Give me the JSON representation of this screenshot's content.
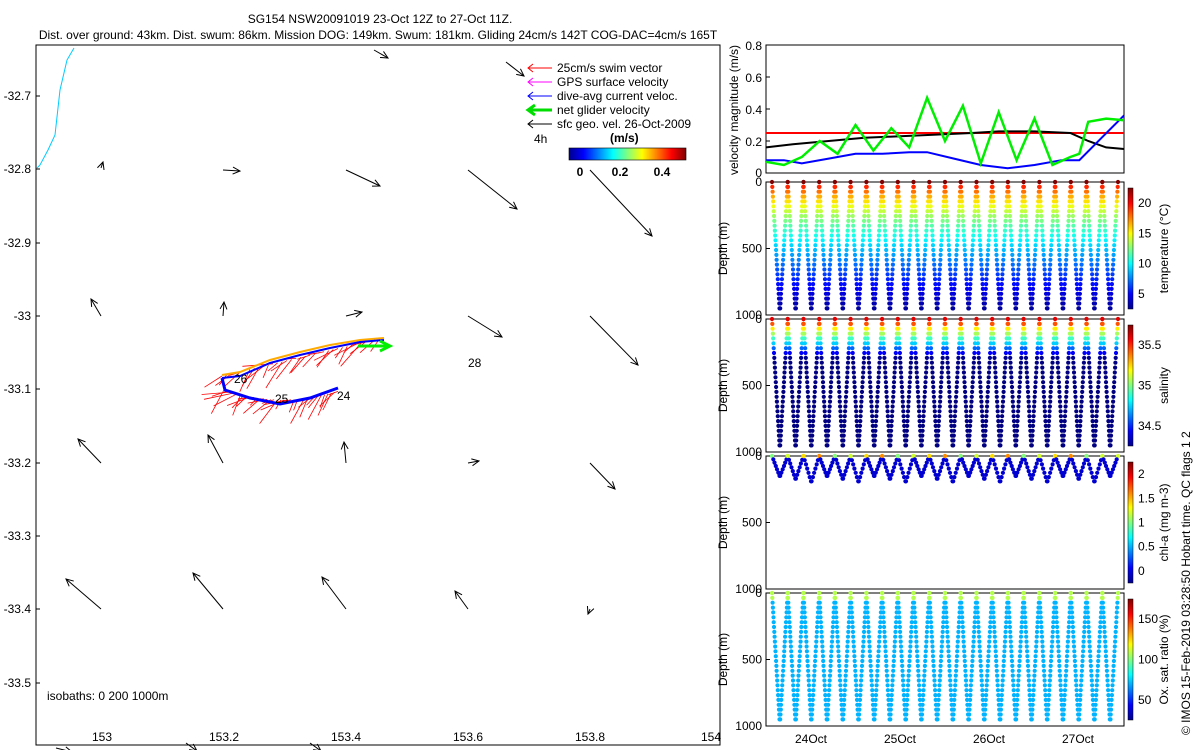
{
  "header": {
    "line1": "SG154 NSW20091019 23-Oct 12Z to 27-Oct 11Z.",
    "line2": "Dist. over ground: 43km. Dist. swum: 86km. Mission DOG: 149km. Swum: 181km. Gliding 24cm/s 142T COG-DAC=4cm/s 165T"
  },
  "map": {
    "legend": {
      "items": [
        {
          "label": "25cm/s swim vector",
          "color": "#ff0000"
        },
        {
          "label": "GPS surface velocity",
          "color": "#ff00ff"
        },
        {
          "label": "dive-avg current veloc.",
          "color": "#0000ff"
        },
        {
          "label": "net glider velocity",
          "color": "#00dd00"
        },
        {
          "label": "sfc geo. vel. 26-Oct-2009",
          "color": "#000000"
        }
      ],
      "duration_label": "4h",
      "colorbar_title": "(m/s)",
      "colorbar_ticks": [
        "0",
        "0.2",
        "0.4"
      ]
    },
    "isobaths_label": "isobaths: 0   200   1000m",
    "track_labels": [
      "26",
      "25",
      "24",
      "28"
    ],
    "xticks": [
      "153",
      "153.2",
      "153.4",
      "153.6",
      "153.8",
      "154"
    ],
    "yticks": [
      "-32.7",
      "-32.8",
      "-32.9",
      "-33",
      "-33.1",
      "-33.2",
      "-33.3",
      "-33.4",
      "-33.5"
    ]
  },
  "chart_data": [
    {
      "type": "line",
      "title": "",
      "ylabel": "velocity magnitude (m/s)",
      "ylim": [
        0,
        0.8
      ],
      "yticks": [
        "0",
        "0.2",
        "0.4",
        "0.6",
        "0.8"
      ],
      "x_days": [
        23.5,
        27.5
      ],
      "series": [
        {
          "color": "#ff0000",
          "x": [
            23.5,
            27.5
          ],
          "y": [
            0.25,
            0.25
          ]
        },
        {
          "color": "#000000",
          "x": [
            23.5,
            23.8,
            24.2,
            24.6,
            25.0,
            25.4,
            25.8,
            26.1,
            26.5,
            26.9,
            27.1,
            27.3,
            27.5
          ],
          "y": [
            0.16,
            0.18,
            0.2,
            0.22,
            0.23,
            0.24,
            0.25,
            0.26,
            0.26,
            0.25,
            0.2,
            0.16,
            0.15
          ]
        },
        {
          "color": "#0000ff",
          "x": [
            23.5,
            23.7,
            23.9,
            24.2,
            24.5,
            24.8,
            25.1,
            25.3,
            25.6,
            25.9,
            26.2,
            26.5,
            26.8,
            27.0,
            27.25,
            27.5
          ],
          "y": [
            0.08,
            0.08,
            0.06,
            0.09,
            0.12,
            0.12,
            0.13,
            0.13,
            0.09,
            0.05,
            0.03,
            0.05,
            0.08,
            0.08,
            0.22,
            0.36
          ]
        },
        {
          "color": "#00ee00",
          "x": [
            23.5,
            23.7,
            23.9,
            24.1,
            24.3,
            24.5,
            24.7,
            24.9,
            25.1,
            25.3,
            25.5,
            25.7,
            25.9,
            26.1,
            26.3,
            26.5,
            26.7,
            26.9,
            27.0,
            27.1,
            27.3,
            27.5
          ],
          "y": [
            0.07,
            0.05,
            0.1,
            0.2,
            0.12,
            0.3,
            0.14,
            0.28,
            0.16,
            0.47,
            0.2,
            0.42,
            0.06,
            0.38,
            0.08,
            0.34,
            0.05,
            0.1,
            0.12,
            0.32,
            0.34,
            0.33
          ]
        }
      ]
    },
    {
      "type": "scatter",
      "ylabel": "Depth (m)",
      "ylim": [
        0,
        1000
      ],
      "yticks": [
        "0",
        "500",
        "1000"
      ],
      "colorbar_label": "temperature (°C)",
      "colorbar_ticks": [
        "5",
        "10",
        "15",
        "20"
      ],
      "max_depth": 950
    },
    {
      "type": "scatter",
      "ylabel": "Depth (m)",
      "ylim": [
        0,
        1000
      ],
      "yticks": [
        "0",
        "500",
        "1000"
      ],
      "colorbar_label": "salinity",
      "colorbar_ticks": [
        "34.5",
        "35",
        "35.5"
      ],
      "max_depth": 950
    },
    {
      "type": "scatter",
      "ylabel": "Depth (m)",
      "ylim": [
        0,
        1000
      ],
      "yticks": [
        "0",
        "500",
        "1000"
      ],
      "colorbar_label": "chl-a (mg m-3)",
      "colorbar_ticks": [
        "0",
        "0.5",
        "1",
        "1.5",
        "2"
      ],
      "max_depth": 190
    },
    {
      "type": "scatter",
      "ylabel": "Depth (m)",
      "ylim": [
        0,
        1000
      ],
      "yticks": [
        "0",
        "500",
        "1000"
      ],
      "colorbar_label": "Ox. sat. ratio (%)",
      "colorbar_ticks": [
        "50",
        "100",
        "150"
      ],
      "max_depth": 950
    }
  ],
  "xaxis_dates": [
    "24Oct",
    "25Oct",
    "26Oct",
    "27Oct"
  ],
  "side_note": "© IMOS 15-Feb-2019 03:28:50 Hobart time. QC flags 1  2"
}
